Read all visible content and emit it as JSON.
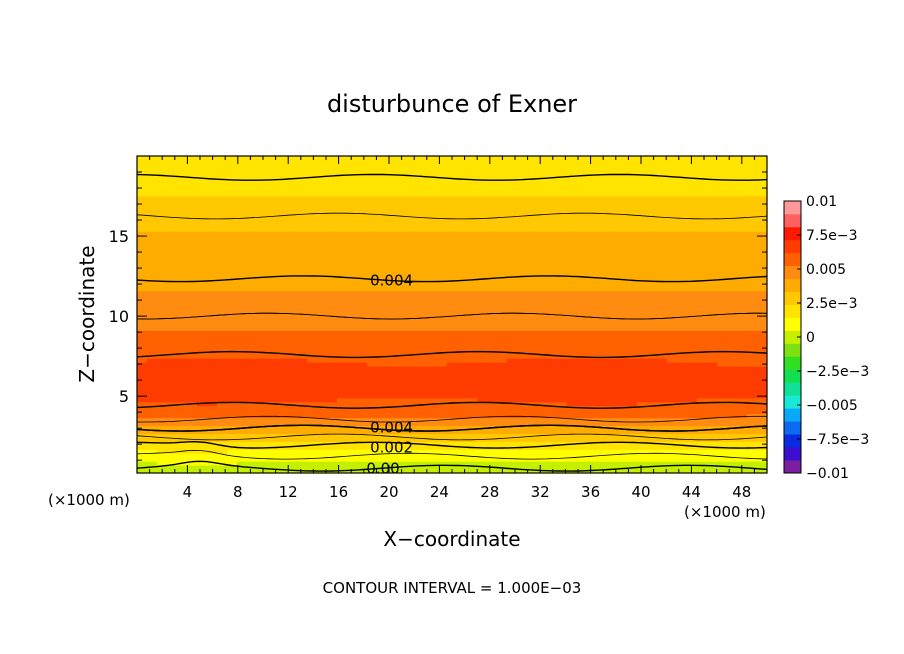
{
  "chart_data": {
    "type": "heatmap",
    "title": "disturbunce of Exner",
    "xlabel": "X−coordinate",
    "ylabel": "Z−coordinate",
    "x_unit_left": "(×1000 m)",
    "x_unit_right": "(×1000 m)",
    "xlim": [
      0,
      50
    ],
    "ylim": [
      0.2,
      20
    ],
    "x_ticks": [
      4,
      8,
      12,
      16,
      20,
      24,
      28,
      32,
      36,
      40,
      44,
      48
    ],
    "y_ticks": [
      5,
      10,
      15
    ],
    "footer": "CONTOUR INTERVAL = 1.000E−03",
    "colorbar": {
      "range": [
        -0.01,
        0.01
      ],
      "tick_values": [
        0.01,
        0.0075,
        0.005,
        0.0025,
        0,
        -0.0025,
        -0.005,
        -0.0075,
        -0.01
      ],
      "tick_labels": [
        "0.01",
        "7.5e−3",
        "0.005",
        "2.5e−3",
        "0",
        "−2.5e−3",
        "−0.005",
        "−7.5e−3",
        "−0.01"
      ],
      "colors": [
        "#7a1fa0",
        "#3a0fd0",
        "#0a2ae0",
        "#0a6af0",
        "#0aa8f8",
        "#18e8d8",
        "#10e098",
        "#10e050",
        "#30e020",
        "#7ee010",
        "#c4f000",
        "#ffff00",
        "#ffe400",
        "#ffc800",
        "#ffac00",
        "#ff8c10",
        "#ff6000",
        "#ff3c00",
        "#ff1800",
        "#ff6060",
        "#ff9898"
      ]
    },
    "contour_labels": [
      {
        "x": 18.5,
        "z": 12.3,
        "text": "0.004"
      },
      {
        "x": 18.5,
        "z": 3.1,
        "text": "0.004"
      },
      {
        "x": 18.5,
        "z": 1.85,
        "text": "0.002"
      },
      {
        "x": 18.2,
        "z": 0.55,
        "text": "0.00"
      }
    ],
    "profile": {
      "z": [
        0.2,
        0.6,
        1.0,
        1.5,
        2.0,
        2.5,
        3.0,
        3.5,
        4.0,
        5.0,
        6.0,
        7.0,
        8.0,
        9.0,
        10.0,
        11.0,
        12.0,
        13.0,
        14.0,
        15.0,
        16.0,
        17.0,
        18.0,
        19.0,
        20.0
      ],
      "value": [
        -0.0003,
        0.0001,
        0.0007,
        0.0013,
        0.0021,
        0.0031,
        0.004,
        0.0049,
        0.0057,
        0.0064,
        0.0066,
        0.0063,
        0.0058,
        0.0053,
        0.005,
        0.0046,
        0.0041,
        0.0038,
        0.0036,
        0.0034,
        0.0031,
        0.0027,
        0.0022,
        0.0019,
        0.0017
      ]
    }
  }
}
